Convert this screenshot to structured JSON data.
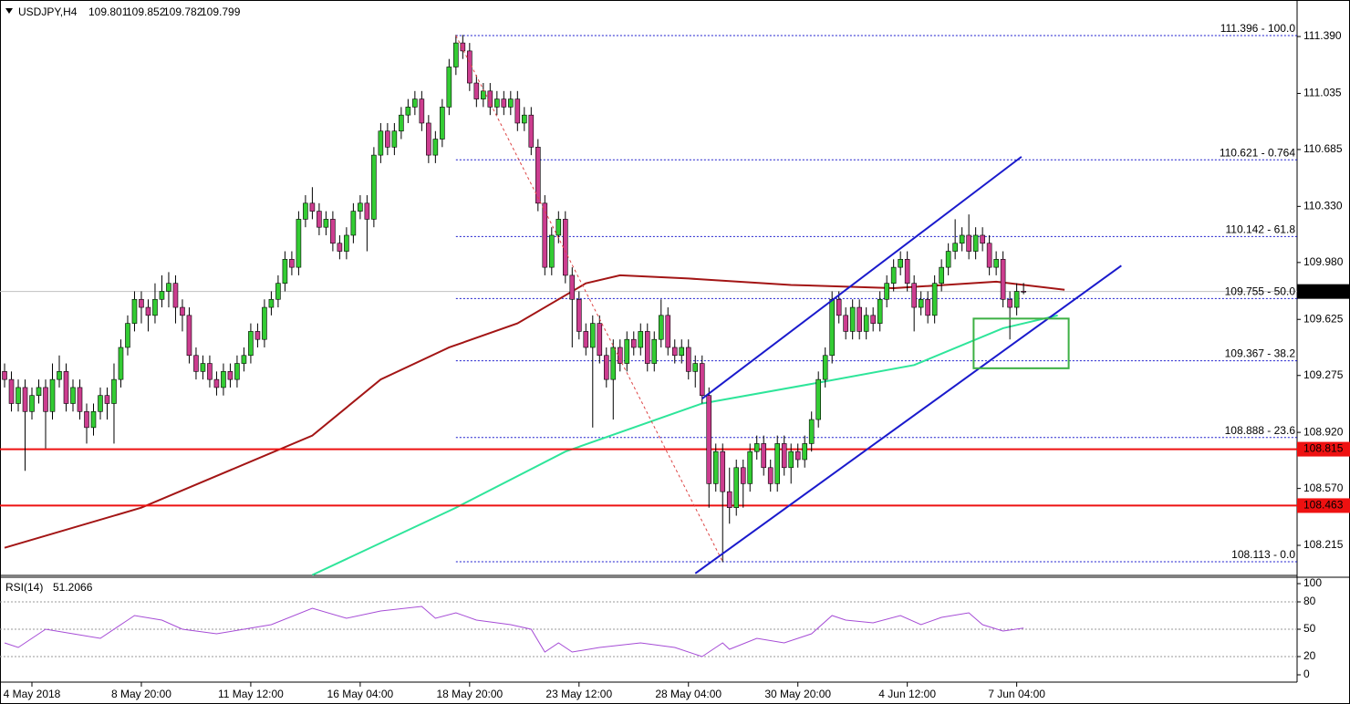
{
  "chart_data": {
    "type": "candlestick",
    "header": {
      "symbol": "USDJPY,H4",
      "open": 109.801,
      "high": 109.852,
      "low": 109.782,
      "close": 109.799
    },
    "up_color": "#33cc33",
    "down_color": "#cc3d8f",
    "wick_color": "#000000",
    "xlim": [
      -0.67,
      189
    ],
    "ylim": [
      108.033,
      111.618
    ],
    "yticks": [
      {
        "value": 111.39,
        "label": "111.390"
      },
      111.035,
      110.685,
      {
        "value": 110.33,
        "label": "110.330"
      },
      {
        "value": 109.98,
        "label": "109.980"
      },
      109.625,
      109.275,
      {
        "value": 108.92,
        "label": "108.920"
      },
      {
        "value": 108.57,
        "label": "108.570"
      },
      108.215
    ],
    "xticks": [
      {
        "value": 4,
        "label": "4 May 2018"
      },
      {
        "value": 20,
        "label": "8 May 20:00"
      },
      {
        "value": 36,
        "label": "11 May 12:00"
      },
      {
        "value": 52,
        "label": "16 May 04:00"
      },
      {
        "value": 68,
        "label": "18 May 20:00"
      },
      {
        "value": 84,
        "label": "23 May 12:00"
      },
      {
        "value": 100,
        "label": "28 May 04:00"
      },
      {
        "value": 116,
        "label": "30 May 20:00"
      },
      {
        "value": 132,
        "label": "4 Jun 12:00"
      },
      {
        "value": 148,
        "label": "7 Jun 04:00"
      }
    ],
    "candles": [
      [
        109.3,
        109.35,
        109.2,
        109.25
      ],
      [
        109.25,
        109.3,
        109.05,
        109.1
      ],
      [
        109.1,
        109.25,
        109.05,
        109.2
      ],
      [
        109.2,
        109.25,
        108.68,
        109.05
      ],
      [
        109.05,
        109.2,
        109.0,
        109.15
      ],
      [
        109.15,
        109.25,
        109.1,
        109.2
      ],
      [
        109.2,
        109.25,
        108.82,
        109.05
      ],
      [
        109.05,
        109.35,
        109.0,
        109.25
      ],
      [
        109.25,
        109.4,
        109.2,
        109.3
      ],
      [
        109.3,
        109.35,
        109.05,
        109.1
      ],
      [
        109.1,
        109.25,
        109.05,
        109.2
      ],
      [
        109.2,
        109.25,
        109.0,
        109.05
      ],
      [
        109.05,
        109.1,
        108.85,
        108.95
      ],
      [
        108.95,
        109.1,
        108.9,
        109.05
      ],
      [
        109.05,
        109.2,
        109.0,
        109.15
      ],
      [
        109.15,
        109.2,
        109.0,
        109.1
      ],
      [
        109.1,
        109.35,
        108.85,
        109.25
      ],
      [
        109.25,
        109.5,
        109.2,
        109.45
      ],
      [
        109.45,
        109.65,
        109.4,
        109.6
      ],
      [
        109.6,
        109.8,
        109.55,
        109.75
      ],
      [
        109.75,
        109.8,
        109.6,
        109.7
      ],
      [
        109.7,
        109.75,
        109.55,
        109.65
      ],
      [
        109.65,
        109.85,
        109.6,
        109.75
      ],
      [
        109.75,
        109.9,
        109.7,
        109.8
      ],
      [
        109.8,
        109.92,
        109.7,
        109.85
      ],
      [
        109.85,
        109.9,
        109.6,
        109.7
      ],
      [
        109.7,
        109.75,
        109.55,
        109.65
      ],
      [
        109.65,
        109.7,
        109.35,
        109.4
      ],
      [
        109.4,
        109.45,
        109.25,
        109.3
      ],
      [
        109.3,
        109.4,
        109.25,
        109.35
      ],
      [
        109.35,
        109.4,
        109.2,
        109.25
      ],
      [
        109.25,
        109.3,
        109.15,
        109.2
      ],
      [
        109.2,
        109.35,
        109.15,
        109.3
      ],
      [
        109.3,
        109.35,
        109.2,
        109.25
      ],
      [
        109.25,
        109.4,
        109.2,
        109.35
      ],
      [
        109.35,
        109.45,
        109.3,
        109.4
      ],
      [
        109.4,
        109.6,
        109.35,
        109.55
      ],
      [
        109.55,
        109.6,
        109.45,
        109.5
      ],
      [
        109.5,
        109.75,
        109.45,
        109.7
      ],
      [
        109.7,
        109.8,
        109.65,
        109.75
      ],
      [
        109.75,
        109.9,
        109.7,
        109.85
      ],
      [
        109.85,
        110.05,
        109.8,
        110.0
      ],
      [
        110.0,
        110.05,
        109.9,
        109.95
      ],
      [
        109.95,
        110.3,
        109.9,
        110.25
      ],
      [
        110.25,
        110.4,
        110.2,
        110.35
      ],
      [
        110.35,
        110.45,
        110.25,
        110.3
      ],
      [
        110.3,
        110.35,
        110.15,
        110.2
      ],
      [
        110.2,
        110.3,
        110.15,
        110.25
      ],
      [
        110.25,
        110.3,
        110.05,
        110.1
      ],
      [
        110.1,
        110.15,
        110.0,
        110.05
      ],
      [
        110.05,
        110.2,
        110.0,
        110.15
      ],
      [
        110.15,
        110.35,
        110.1,
        110.3
      ],
      [
        110.3,
        110.4,
        110.25,
        110.35
      ],
      [
        110.35,
        110.4,
        110.05,
        110.25
      ],
      [
        110.25,
        110.7,
        110.2,
        110.65
      ],
      [
        110.65,
        110.85,
        110.6,
        110.8
      ],
      [
        110.8,
        110.85,
        110.65,
        110.7
      ],
      [
        110.7,
        110.85,
        110.65,
        110.8
      ],
      [
        110.8,
        110.95,
        110.75,
        110.9
      ],
      [
        110.9,
        111.0,
        110.85,
        110.95
      ],
      [
        110.95,
        111.05,
        110.9,
        111.0
      ],
      [
        111.0,
        111.05,
        110.8,
        110.85
      ],
      [
        110.85,
        110.9,
        110.6,
        110.65
      ],
      [
        110.65,
        110.8,
        110.6,
        110.75
      ],
      [
        110.75,
        111.0,
        110.7,
        110.95
      ],
      [
        110.95,
        111.25,
        110.9,
        111.2
      ],
      [
        111.2,
        111.4,
        111.15,
        111.35
      ],
      [
        111.35,
        111.4,
        111.25,
        111.3
      ],
      [
        111.3,
        111.35,
        111.05,
        111.1
      ],
      [
        111.1,
        111.15,
        110.95,
        111.0
      ],
      [
        111.0,
        111.1,
        110.95,
        111.05
      ],
      [
        111.05,
        111.1,
        110.9,
        110.95
      ],
      [
        110.95,
        111.05,
        110.9,
        111.0
      ],
      [
        111.0,
        111.05,
        110.9,
        110.95
      ],
      [
        110.95,
        111.05,
        110.9,
        111.0
      ],
      [
        111.0,
        111.05,
        110.8,
        110.85
      ],
      [
        110.85,
        110.95,
        110.8,
        110.9
      ],
      [
        110.9,
        110.95,
        110.65,
        110.7
      ],
      [
        110.7,
        110.75,
        110.3,
        110.35
      ],
      [
        110.35,
        110.4,
        109.9,
        109.95
      ],
      [
        109.95,
        110.2,
        109.9,
        110.15
      ],
      [
        110.15,
        110.3,
        110.1,
        110.25
      ],
      [
        110.25,
        110.3,
        109.85,
        109.9
      ],
      [
        109.9,
        109.95,
        109.45,
        109.75
      ],
      [
        109.75,
        109.8,
        109.5,
        109.55
      ],
      [
        109.55,
        109.6,
        109.4,
        109.45
      ],
      [
        109.45,
        109.65,
        108.95,
        109.6
      ],
      [
        109.6,
        109.65,
        109.35,
        109.4
      ],
      [
        109.4,
        109.45,
        109.2,
        109.25
      ],
      [
        109.25,
        109.5,
        109.0,
        109.45
      ],
      [
        109.45,
        109.5,
        109.3,
        109.35
      ],
      [
        109.35,
        109.55,
        109.3,
        109.5
      ],
      [
        109.5,
        109.55,
        109.4,
        109.45
      ],
      [
        109.45,
        109.6,
        109.4,
        109.55
      ],
      [
        109.55,
        109.6,
        109.3,
        109.35
      ],
      [
        109.35,
        109.55,
        109.3,
        109.5
      ],
      [
        109.5,
        109.75,
        109.45,
        109.65
      ],
      [
        109.65,
        109.7,
        109.4,
        109.45
      ],
      [
        109.45,
        109.5,
        109.35,
        109.4
      ],
      [
        109.4,
        109.5,
        109.35,
        109.45
      ],
      [
        109.45,
        109.5,
        109.25,
        109.3
      ],
      [
        109.3,
        109.4,
        109.2,
        109.35
      ],
      [
        109.35,
        109.4,
        109.1,
        109.15
      ],
      [
        109.15,
        109.2,
        108.45,
        108.6
      ],
      [
        108.6,
        108.85,
        108.55,
        108.8
      ],
      [
        108.8,
        108.85,
        108.11,
        108.55
      ],
      [
        108.55,
        108.7,
        108.35,
        108.45
      ],
      [
        108.45,
        108.75,
        108.4,
        108.7
      ],
      [
        108.7,
        108.75,
        108.45,
        108.6
      ],
      [
        108.6,
        108.85,
        108.55,
        108.8
      ],
      [
        108.8,
        108.9,
        108.75,
        108.85
      ],
      [
        108.85,
        108.9,
        108.65,
        108.7
      ],
      [
        108.7,
        108.75,
        108.55,
        108.6
      ],
      [
        108.6,
        108.9,
        108.55,
        108.85
      ],
      [
        108.85,
        108.9,
        108.65,
        108.7
      ],
      [
        108.7,
        108.85,
        108.6,
        108.8
      ],
      [
        108.8,
        108.85,
        108.7,
        108.75
      ],
      [
        108.75,
        108.9,
        108.7,
        108.85
      ],
      [
        108.85,
        109.05,
        108.8,
        109.0
      ],
      [
        109.0,
        109.3,
        108.95,
        109.25
      ],
      [
        109.25,
        109.45,
        109.2,
        109.4
      ],
      [
        109.4,
        109.8,
        109.35,
        109.75
      ],
      [
        109.75,
        109.8,
        109.6,
        109.65
      ],
      [
        109.65,
        109.7,
        109.5,
        109.55
      ],
      [
        109.55,
        109.75,
        109.5,
        109.7
      ],
      [
        109.7,
        109.75,
        109.5,
        109.55
      ],
      [
        109.55,
        109.7,
        109.5,
        109.65
      ],
      [
        109.65,
        109.7,
        109.55,
        109.6
      ],
      [
        109.6,
        109.8,
        109.55,
        109.75
      ],
      [
        109.75,
        109.9,
        109.7,
        109.85
      ],
      [
        109.85,
        110.0,
        109.8,
        109.95
      ],
      [
        109.95,
        110.05,
        109.9,
        110.0
      ],
      [
        110.0,
        110.05,
        109.8,
        109.85
      ],
      [
        109.85,
        109.9,
        109.55,
        109.7
      ],
      [
        109.7,
        109.8,
        109.65,
        109.75
      ],
      [
        109.75,
        109.8,
        109.6,
        109.65
      ],
      [
        109.65,
        109.9,
        109.6,
        109.85
      ],
      [
        109.85,
        110.0,
        109.8,
        109.95
      ],
      [
        109.95,
        110.1,
        109.9,
        110.05
      ],
      [
        110.05,
        110.25,
        110.0,
        110.1
      ],
      [
        110.1,
        110.2,
        110.05,
        110.15
      ],
      [
        110.15,
        110.28,
        110.0,
        110.05
      ],
      [
        110.05,
        110.2,
        110.0,
        110.15
      ],
      [
        110.15,
        110.2,
        110.05,
        110.1
      ],
      [
        110.1,
        110.15,
        109.9,
        109.95
      ],
      [
        109.95,
        110.05,
        109.9,
        110.0
      ],
      [
        110.0,
        110.05,
        109.7,
        109.75
      ],
      [
        109.75,
        109.8,
        109.5,
        109.7
      ],
      [
        109.7,
        109.85,
        109.65,
        109.8
      ],
      [
        109.801,
        109.852,
        109.782,
        109.799
      ]
    ],
    "moving_averages": [
      {
        "color": "#a31515",
        "x": [
          0,
          20,
          30,
          45,
          55,
          65,
          75,
          85,
          90,
          100,
          115,
          130,
          145,
          155
        ],
        "values": [
          108.2,
          108.45,
          108.63,
          108.9,
          109.25,
          109.45,
          109.6,
          109.85,
          109.9,
          109.88,
          109.84,
          109.82,
          109.86,
          109.81
        ]
      },
      {
        "color": "#2ee59a",
        "x": [
          45,
          66,
          82,
          102,
          119,
          133,
          146,
          154
        ],
        "values": [
          108.03,
          108.45,
          108.8,
          109.1,
          109.23,
          109.34,
          109.57,
          109.65
        ]
      }
    ],
    "fib_levels": [
      {
        "value": 111.396,
        "label": "111.396 - 100.0"
      },
      {
        "value": 110.621,
        "label": "110.621 - 0.764"
      },
      {
        "value": 110.142,
        "label": "110.142 - 61.8"
      },
      {
        "value": 109.755,
        "label": "109.755 - 50.0"
      },
      {
        "value": 109.367,
        "label": "109.367 - 38.2"
      },
      {
        "value": 108.888,
        "label": "108.888 - 23.6"
      },
      {
        "value": 108.113,
        "label": "108.113 - 0.0"
      }
    ],
    "fib_color": "#1a1acc",
    "fib_start": 66,
    "support_levels": [
      108.815,
      108.463
    ],
    "support_color": "#ee1111",
    "current_price": 109.799,
    "drawings": [
      {
        "kind": "line",
        "color": "#1a1acc",
        "x": [
          102,
          148.7
        ],
        "y": [
          109.13,
          110.64
        ]
      },
      {
        "kind": "line",
        "color": "#1a1acc",
        "x": [
          101,
          163.3
        ],
        "y": [
          108.04,
          109.96
        ]
      },
      {
        "kind": "dashed",
        "color": "#dd4444",
        "x": [
          66,
          105
        ],
        "y": [
          111.396,
          108.113
        ]
      },
      {
        "kind": "box",
        "color": "#3cb043",
        "x": [
          141.7,
          155.6
        ],
        "y": [
          109.63,
          109.32
        ]
      }
    ],
    "rsi": {
      "title": "RSI(14)",
      "value": 51.2066,
      "color": "#a64dd6",
      "ylim": [
        0,
        100
      ],
      "yticks": [
        100,
        80,
        50,
        20,
        0
      ],
      "levels": [
        80,
        50,
        20
      ],
      "x": [
        0,
        2,
        6,
        10,
        14,
        18,
        19,
        23,
        26,
        31,
        35,
        39,
        45,
        50,
        55,
        61,
        63,
        66,
        69,
        74,
        77,
        79,
        81,
        83,
        87,
        93,
        98,
        102,
        105,
        106,
        110,
        114,
        118,
        121,
        123,
        127,
        131,
        134,
        137,
        141,
        143,
        146,
        149
      ],
      "values": [
        35,
        30,
        50,
        45,
        40,
        60,
        65,
        60,
        50,
        45,
        50,
        55,
        73,
        62,
        70,
        75,
        62,
        68,
        60,
        55,
        50,
        25,
        35,
        25,
        30,
        35,
        30,
        20,
        35,
        28,
        40,
        35,
        45,
        65,
        60,
        57,
        65,
        55,
        63,
        68,
        55,
        48,
        51.2
      ]
    }
  }
}
